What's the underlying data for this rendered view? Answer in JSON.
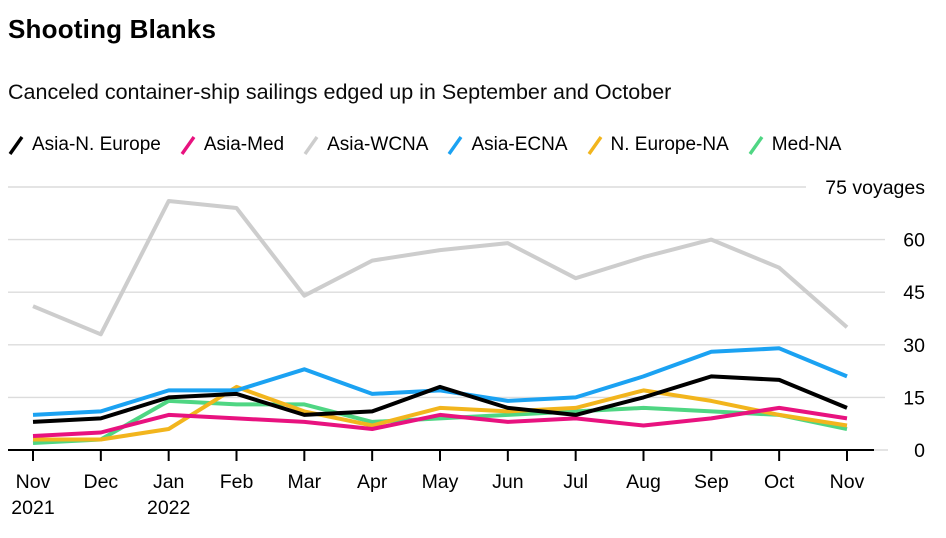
{
  "header": {
    "title": "Shooting Blanks",
    "subtitle": "Canceled container-ship sailings edged up in September and October"
  },
  "chart_data": {
    "type": "line",
    "title": "Shooting Blanks",
    "subtitle": "Canceled container-ship sailings edged up in September and October",
    "unit": "voyages",
    "grid": true,
    "legend_position": "top",
    "ylim": [
      0,
      75
    ],
    "y_ticks": [
      0,
      15,
      30,
      45,
      60
    ],
    "y_top_label": "75 voyages",
    "y_top_value": 75,
    "x_tick_labels": [
      "Nov",
      "Dec",
      "Jan",
      "Feb",
      "Mar",
      "Apr",
      "May",
      "Jun",
      "Jul",
      "Aug",
      "Sep",
      "Oct",
      "Nov"
    ],
    "x_tick_sublabels": [
      "2021",
      "",
      "2022",
      "",
      "",
      "",
      "",
      "",
      "",
      "",
      "",
      "",
      ""
    ],
    "series": [
      {
        "name": "Asia-N. Europe",
        "color": "#000000",
        "values": [
          8,
          9,
          15,
          16,
          10,
          11,
          18,
          12,
          10,
          15,
          21,
          20,
          12
        ]
      },
      {
        "name": "Asia-Med",
        "color": "#e8127f",
        "values": [
          4,
          5,
          10,
          9,
          8,
          6,
          10,
          8,
          9,
          7,
          9,
          12,
          9
        ]
      },
      {
        "name": "Asia-WCNA",
        "color": "#cdcdcd",
        "values": [
          41,
          33,
          71,
          69,
          44,
          54,
          57,
          59,
          49,
          55,
          60,
          52,
          35
        ]
      },
      {
        "name": "Asia-ECNA",
        "color": "#1ba2f2",
        "values": [
          10,
          11,
          17,
          17,
          23,
          16,
          17,
          14,
          15,
          21,
          28,
          29,
          21
        ]
      },
      {
        "name": "N. Europe-NA",
        "color": "#f2b51d",
        "values": [
          3,
          3,
          6,
          18,
          11,
          7,
          12,
          11,
          12,
          17,
          14,
          10,
          7
        ]
      },
      {
        "name": "Med-NA",
        "color": "#4fd683",
        "values": [
          2,
          3,
          14,
          13,
          13,
          8,
          9,
          10,
          11,
          12,
          11,
          10,
          6
        ]
      }
    ],
    "draw_order": [
      2,
      5,
      4,
      1,
      3,
      0
    ],
    "colors": {
      "gridline": "#dcdcdc",
      "axis": "#000000",
      "label": "#000000"
    }
  }
}
